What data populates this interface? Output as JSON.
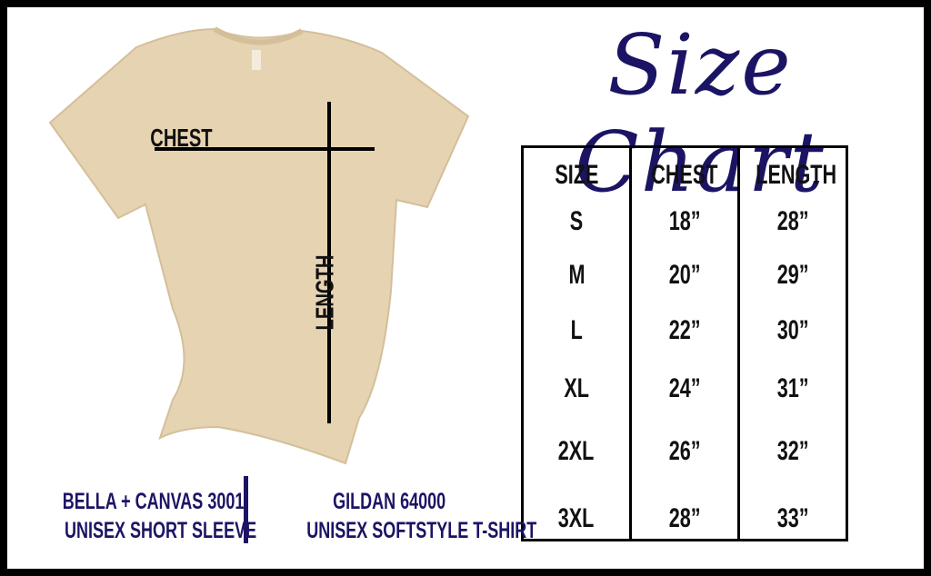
{
  "title": "Size Chart",
  "shirt": {
    "chest_label": "CHEST",
    "length_label": "LENGTH",
    "color": "#e6d3b1"
  },
  "table": {
    "headers": [
      "SIZE",
      "CHEST",
      "LENGTH"
    ],
    "rows": [
      [
        "S",
        "18”",
        "28”"
      ],
      [
        "M",
        "20”",
        "29”"
      ],
      [
        "L",
        "22”",
        "30”"
      ],
      [
        "XL",
        "24”",
        "31”"
      ],
      [
        "2XL",
        "26”",
        "32”"
      ],
      [
        "3XL",
        "28”",
        "33”"
      ]
    ]
  },
  "brands": [
    {
      "line1": "BELLA + CANVAS 3001",
      "line2": "UNISEX SHORT SLEEVE"
    },
    {
      "line1": "GILDAN 64000",
      "line2": "UNISEX SOFTSTYLE T-SHIRT"
    }
  ],
  "colors": {
    "accent": "#1b1464",
    "border": "#000000"
  }
}
